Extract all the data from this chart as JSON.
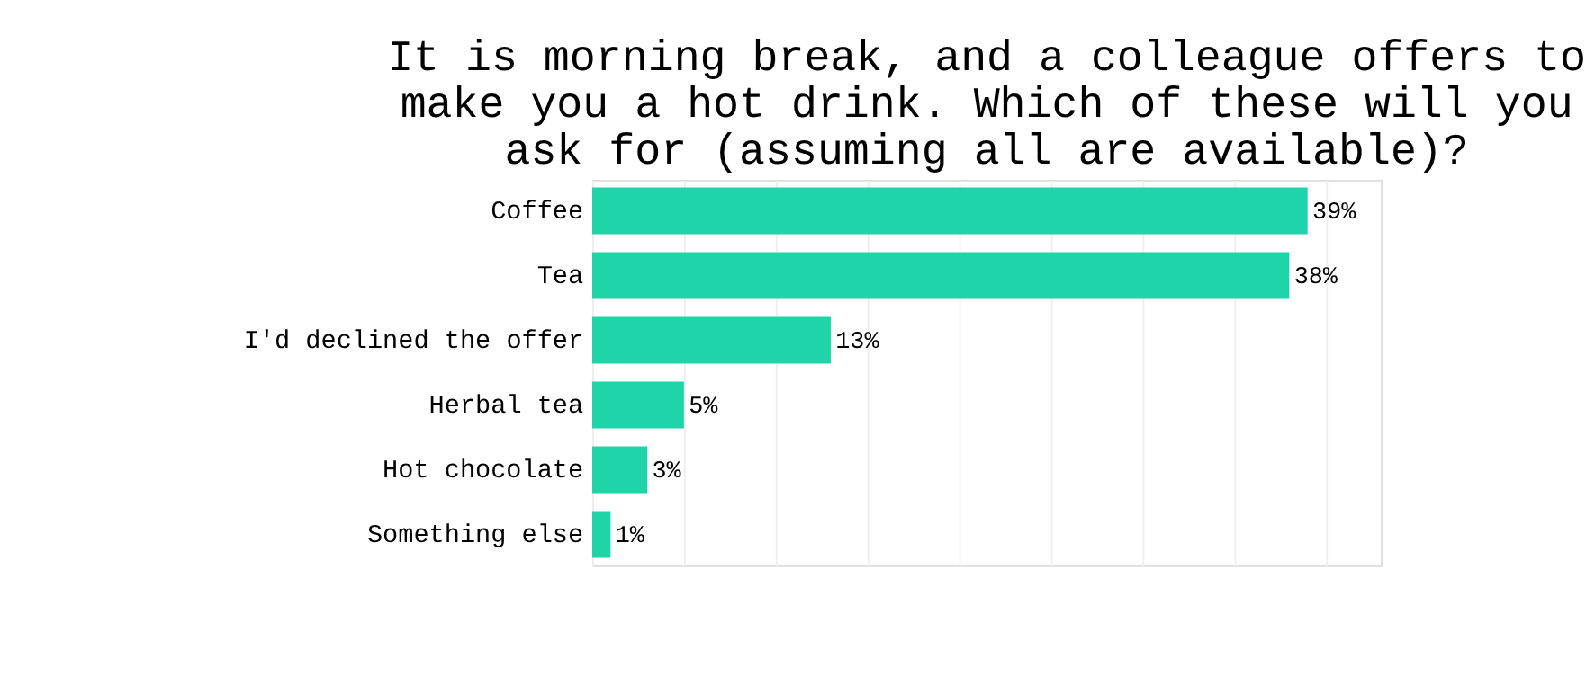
{
  "chart_data": {
    "type": "bar",
    "orientation": "horizontal",
    "title": "It is morning break, and a colleague offers to make you a hot drink. Which of these will you ask for (assuming all are available)?",
    "categories": [
      "Coffee",
      "Tea",
      "I'd declined the offer",
      "Herbal tea",
      "Hot chocolate",
      "Something else"
    ],
    "values": [
      39,
      38,
      13,
      5,
      3,
      1
    ],
    "color": "#1ed4a8",
    "value_labels": [
      "39%",
      "38%",
      "13%",
      "5%",
      "3%",
      "1%"
    ],
    "xlim": [
      0,
      43
    ],
    "xticks": [
      {
        "value": 0,
        "label": null
      },
      {
        "value": 5,
        "label": null
      },
      {
        "value": 10,
        "label": null
      },
      {
        "value": 15,
        "label": null
      },
      {
        "value": 20,
        "label": null
      },
      {
        "value": 25,
        "label": null
      },
      {
        "value": 30,
        "label": null
      },
      {
        "value": 35,
        "label": null
      },
      {
        "value": 40,
        "label": null
      }
    ],
    "grid": "x",
    "tick_labels": "y"
  }
}
